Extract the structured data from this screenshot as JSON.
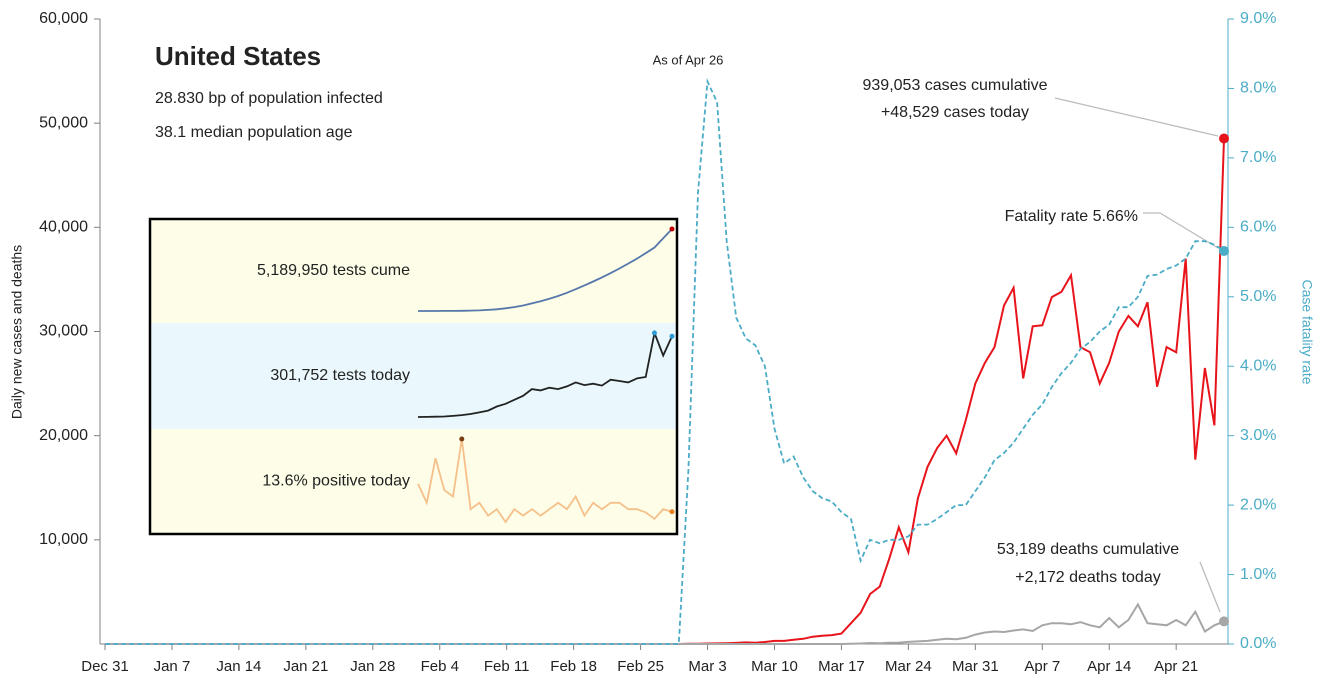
{
  "chart_data": [
    {
      "type": "line",
      "title": "United States",
      "subtitle": [
        "28.830 bp of population infected",
        "38.1 median population age"
      ],
      "ylabel": "Daily new cases and deaths",
      "y2label": "Case fatality rate",
      "annotations": [
        "As of Apr 26",
        "939,053 cases cumulative",
        "+48,529 cases today",
        "Fatality rate 5.66%",
        "53,189 deaths cumulative",
        "+2,172 deaths today"
      ],
      "categories": [
        "Dec 31",
        null,
        null,
        null,
        null,
        null,
        null,
        "Jan 7",
        null,
        null,
        null,
        null,
        null,
        null,
        "Jan 14",
        null,
        null,
        null,
        null,
        null,
        null,
        "Jan 21",
        null,
        null,
        null,
        null,
        null,
        null,
        "Jan 28",
        null,
        null,
        null,
        null,
        null,
        null,
        "Feb 4",
        null,
        null,
        null,
        null,
        null,
        null,
        "Feb 11",
        null,
        null,
        null,
        null,
        null,
        null,
        "Feb 18",
        null,
        null,
        null,
        null,
        null,
        null,
        "Feb 25",
        null,
        null,
        null,
        null,
        null,
        null,
        "Mar 3",
        null,
        null,
        null,
        null,
        null,
        null,
        "Mar 10",
        null,
        null,
        null,
        null,
        null,
        null,
        "Mar 17",
        null,
        null,
        null,
        null,
        null,
        null,
        "Mar 24",
        null,
        null,
        null,
        null,
        null,
        null,
        "Mar 31",
        null,
        null,
        null,
        null,
        null,
        null,
        "Apr 7",
        null,
        null,
        null,
        null,
        null,
        null,
        "Apr 14",
        null,
        null,
        null,
        null,
        null,
        null,
        "Apr 21",
        null,
        null,
        null,
        null,
        null
      ],
      "ylim": [
        0,
        60000
      ],
      "yticks": [
        {
          "value": 10000,
          "label": "10,000"
        },
        {
          "value": 20000,
          "label": "20,000"
        },
        {
          "value": 30000,
          "label": "30,000"
        },
        {
          "value": 40000,
          "label": "40,000"
        },
        {
          "value": 50000,
          "label": "50,000"
        },
        {
          "value": 60000,
          "label": "60,000"
        }
      ],
      "y2lim": [
        0,
        9
      ],
      "y2ticks": [
        {
          "value": 0,
          "label": "0.0%"
        },
        {
          "value": 1,
          "label": "1.0%"
        },
        {
          "value": 2,
          "label": "2.0%"
        },
        {
          "value": 3,
          "label": "3.0%"
        },
        {
          "value": 4,
          "label": "4.0%"
        },
        {
          "value": 5,
          "label": "5.0%"
        },
        {
          "value": 6,
          "label": "6.0%"
        },
        {
          "value": 7,
          "label": "7.0%"
        },
        {
          "value": 8,
          "label": "8.0%"
        },
        {
          "value": 9,
          "label": "9.0%"
        }
      ],
      "series": [
        {
          "name": "Daily new cases",
          "color": "#e8141b",
          "values": [
            0,
            0,
            0,
            0,
            0,
            0,
            0,
            0,
            0,
            0,
            0,
            0,
            0,
            0,
            0,
            0,
            0,
            0,
            0,
            0,
            0,
            0,
            0,
            0,
            0,
            0,
            0,
            0,
            0,
            0,
            0,
            0,
            0,
            0,
            0,
            0,
            0,
            0,
            0,
            0,
            0,
            0,
            0,
            0,
            0,
            0,
            0,
            0,
            0,
            0,
            0,
            0,
            0,
            0,
            0,
            0,
            0,
            0,
            0,
            0,
            0,
            20,
            30,
            50,
            60,
            80,
            110,
            150,
            120,
            190,
            300,
            300,
            400,
            500,
            700,
            800,
            850,
            1000,
            2000,
            3000,
            4800,
            5500,
            8200,
            11200,
            8800,
            14000,
            17000,
            18800,
            20000,
            18300,
            21500,
            25000,
            27000,
            28500,
            32500,
            34200,
            25500,
            30500,
            30600,
            33300,
            33800,
            35400,
            28500,
            28000,
            25000,
            27000,
            30000,
            31500,
            30500,
            32800,
            24700,
            28500,
            28000,
            37000,
            17700,
            26500,
            21000,
            48529
          ]
        },
        {
          "name": "Daily new deaths",
          "color": "#a6a6a6",
          "values": [
            0,
            0,
            0,
            0,
            0,
            0,
            0,
            0,
            0,
            0,
            0,
            0,
            0,
            0,
            0,
            0,
            0,
            0,
            0,
            0,
            0,
            0,
            0,
            0,
            0,
            0,
            0,
            0,
            0,
            0,
            0,
            0,
            0,
            0,
            0,
            0,
            0,
            0,
            0,
            0,
            0,
            0,
            0,
            0,
            0,
            0,
            0,
            0,
            0,
            0,
            0,
            0,
            0,
            0,
            0,
            0,
            0,
            0,
            0,
            0,
            0,
            0,
            0,
            0,
            0,
            0,
            0,
            0,
            0,
            0,
            0,
            0,
            0,
            0,
            0,
            0,
            0,
            0,
            20,
            50,
            100,
            80,
            120,
            130,
            200,
            250,
            300,
            400,
            500,
            450,
            600,
            900,
            1100,
            1200,
            1150,
            1300,
            1400,
            1250,
            1800,
            2000,
            2000,
            1900,
            2100,
            1800,
            1600,
            2500,
            1600,
            2300,
            3800,
            2000,
            1900,
            1800,
            2300,
            1800,
            3100,
            1200,
            1800,
            2172
          ]
        },
        {
          "name": "Case fatality rate",
          "color": "#4bacc6",
          "axis": "y2",
          "dashed": true,
          "values": [
            0,
            0,
            0,
            0,
            0,
            0,
            0,
            0,
            0,
            0,
            0,
            0,
            0,
            0,
            0,
            0,
            0,
            0,
            0,
            0,
            0,
            0,
            0,
            0,
            0,
            0,
            0,
            0,
            0,
            0,
            0,
            0,
            0,
            0,
            0,
            0,
            0,
            0,
            0,
            0,
            0,
            0,
            0,
            0,
            0,
            0,
            0,
            0,
            0,
            0,
            0,
            0,
            0,
            0,
            0,
            0,
            0,
            0,
            0,
            0,
            0,
            2.5,
            6.5,
            8.1,
            7.8,
            5.8,
            4.7,
            4.4,
            4.3,
            4.0,
            3.1,
            2.6,
            2.7,
            2.4,
            2.2,
            2.1,
            2.05,
            1.9,
            1.8,
            1.2,
            1.5,
            1.45,
            1.5,
            1.5,
            1.55,
            1.72,
            1.72,
            1.8,
            1.9,
            2.0,
            2.0,
            2.2,
            2.4,
            2.65,
            2.75,
            2.9,
            3.1,
            3.3,
            3.45,
            3.7,
            3.9,
            4.05,
            4.25,
            4.35,
            4.5,
            4.6,
            4.85,
            4.85,
            5.0,
            5.3,
            5.32,
            5.4,
            5.45,
            5.55,
            5.8,
            5.8,
            5.75,
            5.66
          ]
        }
      ]
    },
    {
      "type": "sparkline",
      "band_colors": [
        "#fdfde8",
        "#eaf8fd",
        "#fdfde8"
      ],
      "series": [
        {
          "name": "5,189,950 tests cume",
          "color": "#5577aa",
          "marker_color": "#c00000",
          "values": [
            1000,
            2000,
            3000,
            5000,
            8000,
            15000,
            25000,
            40000,
            70000,
            110000,
            170000,
            250000,
            350000,
            480000,
            620000,
            780000,
            950000,
            1150000,
            1380000,
            1620000,
            1870000,
            2130000,
            2400000,
            2690000,
            3000000,
            3320000,
            3660000,
            4020000,
            4600000,
            5189950
          ]
        },
        {
          "name": "301,752 tests today",
          "color": "#222222",
          "marker_color": "#2e9bd6",
          "values": [
            1000,
            1500,
            2000,
            3000,
            5000,
            8000,
            12000,
            18000,
            25000,
            40000,
            50000,
            65000,
            80000,
            105000,
            100000,
            110000,
            105000,
            115000,
            130000,
            120000,
            125000,
            118000,
            140000,
            135000,
            130000,
            145000,
            150000,
            314000,
            230000,
            301752
          ]
        },
        {
          "name": "13.6% positive today",
          "color": "#f5c08a",
          "marker_color": "#7a3b10",
          "values": [
            18,
            15,
            22,
            17,
            16,
            25,
            14,
            15,
            13,
            14,
            12,
            14,
            13,
            14,
            13,
            14,
            15,
            14,
            16,
            13,
            15,
            14,
            15,
            15,
            14,
            14,
            13.5,
            12.5,
            14,
            13.6
          ]
        }
      ]
    }
  ]
}
